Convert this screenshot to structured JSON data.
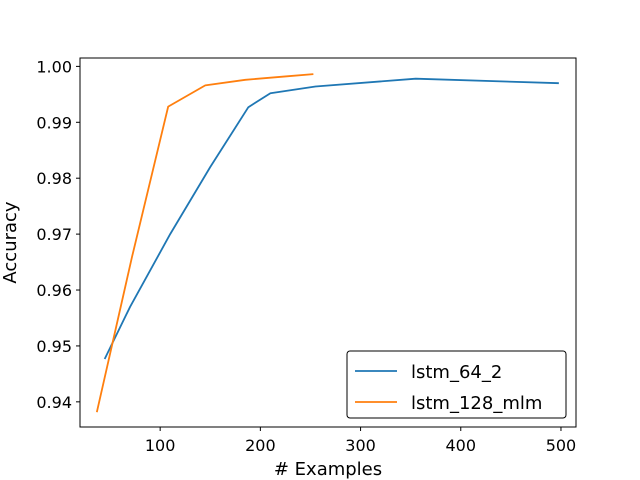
{
  "chart_data": {
    "type": "line",
    "xlabel": "# Examples",
    "ylabel": "Accuracy",
    "xlim": [
      20,
      515
    ],
    "ylim": [
      0.9355,
      1.0015
    ],
    "xticks": [
      100,
      200,
      300,
      400,
      500
    ],
    "yticks": [
      0.94,
      0.95,
      0.96,
      0.97,
      0.98,
      0.99,
      1.0
    ],
    "xtick_labels": [
      "100",
      "200",
      "300",
      "400",
      "500"
    ],
    "ytick_labels": [
      "0.94",
      "0.95",
      "0.96",
      "0.97",
      "0.98",
      "0.99",
      "1.00"
    ],
    "grid": false,
    "legend_position": "lower-right",
    "series": [
      {
        "name": "lstm_64_2",
        "color": "#1f77b4",
        "x": [
          45,
          70,
          110,
          150,
          188,
          210,
          255,
          355,
          497
        ],
        "y": [
          0.9478,
          0.957,
          0.97,
          0.982,
          0.9927,
          0.9952,
          0.9964,
          0.9978,
          0.997
        ]
      },
      {
        "name": "lstm_128_mlm",
        "color": "#ff7f0e",
        "x": [
          37,
          72,
          108,
          145,
          185,
          225,
          252
        ],
        "y": [
          0.9383,
          0.966,
          0.9928,
          0.9966,
          0.9976,
          0.9982,
          0.9986
        ]
      }
    ]
  }
}
